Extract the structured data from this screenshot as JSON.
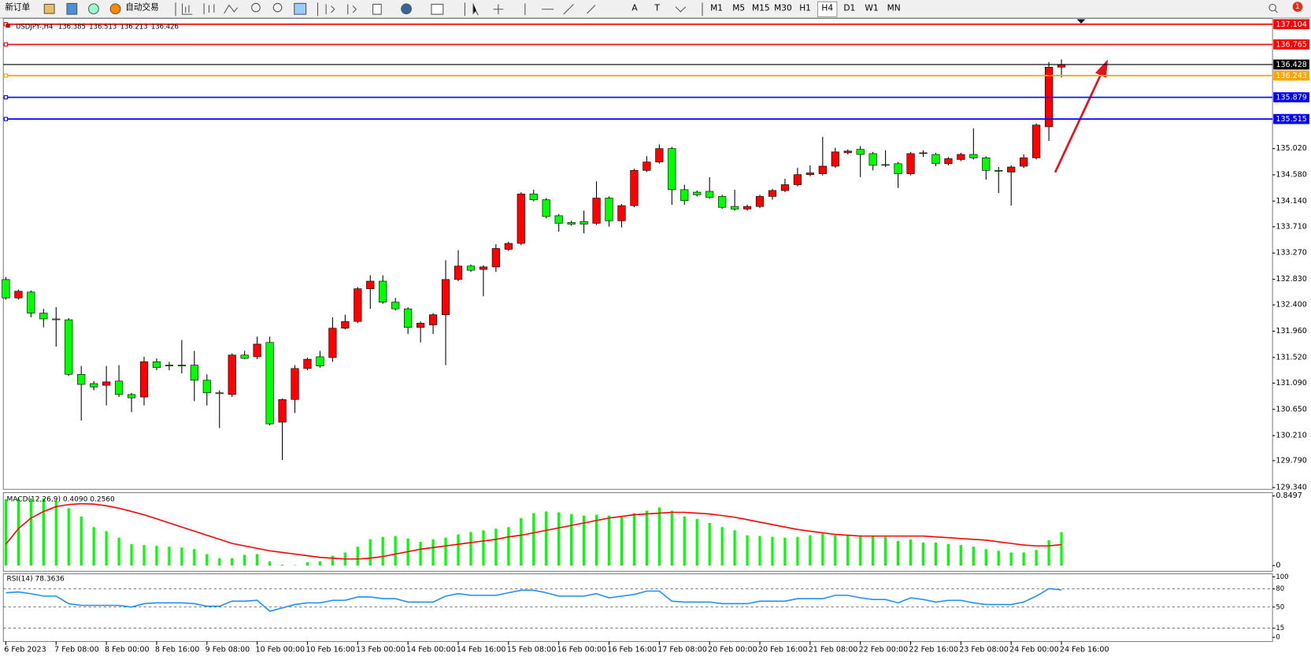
{
  "toolbar": {
    "buttons": [
      "新订单",
      "自动交易"
    ],
    "timeframes": [
      "M1",
      "M5",
      "M15",
      "M30",
      "H1",
      "H4",
      "D1",
      "W1",
      "MN"
    ],
    "tool_letters": [
      "A",
      "T"
    ],
    "notification_count": 1
  },
  "chart_data": [
    {
      "type": "candlestick",
      "title": "USDJPY-,H4",
      "header_values": [
        136.385,
        136.513,
        136.213,
        136.426
      ],
      "categories": [
        "6 Feb 2023",
        null,
        null,
        null,
        "7 Feb 08:00",
        null,
        null,
        null,
        "8 Feb 00:00",
        null,
        null,
        null,
        "8 Feb 16:00",
        null,
        null,
        null,
        "9 Feb 08:00",
        null,
        null,
        null,
        "10 Feb 00:00",
        null,
        null,
        null,
        "10 Feb 16:00",
        null,
        null,
        null,
        "13 Feb 00:00",
        null,
        null,
        null,
        "14 Feb 00:00",
        null,
        null,
        null,
        "14 Feb 16:00",
        null,
        null,
        null,
        "15 Feb 08:00",
        null,
        null,
        null,
        "16 Feb 00:00",
        null,
        null,
        null,
        "16 Feb 16:00",
        null,
        null,
        null,
        "17 Feb 08:00",
        null,
        null,
        null,
        "20 Feb 00:00",
        null,
        null,
        null,
        "20 Feb 16:00",
        null,
        null,
        null,
        "21 Feb 08:00",
        null,
        null,
        null,
        "22 Feb 00:00",
        null,
        null,
        null,
        "22 Feb 16:00",
        null,
        null,
        null,
        "23 Feb 08:00",
        null,
        null,
        null,
        "24 Feb 00:00",
        null,
        null,
        null,
        "24 Feb 16:00"
      ],
      "open": [
        132.826,
        132.517,
        132.615,
        132.263,
        132.165,
        132.151,
        131.237,
        131.082,
        131.054,
        131.124,
        130.899,
        130.857,
        131.447,
        131.391,
        131.391,
        131.391,
        131.138,
        130.927,
        130.899,
        131.56,
        131.532,
        131.771,
        130.435,
        130.815,
        131.335,
        131.532,
        131.518,
        132.01,
        132.123,
        132.671,
        132.798,
        132.446,
        132.334,
        132.024,
        132.066,
        132.235,
        132.826,
        133.051,
        132.995,
        133.037,
        133.332,
        133.431,
        134.26,
        134.162,
        133.895,
        133.782,
        133.796,
        133.768,
        134.19,
        133.81,
        134.064,
        134.654,
        134.795,
        135.02,
        134.331,
        134.289,
        134.303,
        134.218,
        134.05,
        134.007,
        134.05,
        134.218,
        134.317,
        134.415,
        134.584,
        134.598,
        134.725,
        134.95,
        135.006,
        134.936,
        134.753,
        134.767,
        134.598,
        134.936,
        134.922,
        134.767,
        134.837,
        134.922,
        134.865,
        134.654,
        134.626,
        134.725,
        134.865,
        135.386,
        136.385
      ],
      "high": [
        132.868,
        132.657,
        132.643,
        132.334,
        132.362,
        132.179,
        131.377,
        131.124,
        131.377,
        131.391,
        130.927,
        131.532,
        131.504,
        131.447,
        131.813,
        131.63,
        131.237,
        130.969,
        131.588,
        131.63,
        131.869,
        131.869,
        130.83,
        131.391,
        131.518,
        131.63,
        132.193,
        132.235,
        132.699,
        132.896,
        132.896,
        132.517,
        132.362,
        132.123,
        132.263,
        133.149,
        133.318,
        133.079,
        133.065,
        133.417,
        133.459,
        134.288,
        134.331,
        134.19,
        133.923,
        133.81,
        133.979,
        134.471,
        134.218,
        134.092,
        134.682,
        134.893,
        135.09,
        135.048,
        134.415,
        134.317,
        134.542,
        134.246,
        134.331,
        134.078,
        134.246,
        134.345,
        134.514,
        134.697,
        134.739,
        135.217,
        135.034,
        135.006,
        135.062,
        134.964,
        134.992,
        134.795,
        134.964,
        134.992,
        134.95,
        134.879,
        134.95,
        135.358,
        134.893,
        134.711,
        134.739,
        134.922,
        135.442,
        136.469,
        136.513
      ],
      "low": [
        132.489,
        132.489,
        132.193,
        132.024,
        131.701,
        131.209,
        130.463,
        130.969,
        130.716,
        130.857,
        130.604,
        130.716,
        131.307,
        131.307,
        131.251,
        130.787,
        130.716,
        130.336,
        130.857,
        131.49,
        131.49,
        130.38,
        129.802,
        130.59,
        131.307,
        131.349,
        131.447,
        131.99,
        132.094,
        132.334,
        132.418,
        132.306,
        131.912,
        131.771,
        131.912,
        131.391,
        132.798,
        132.953,
        132.545,
        132.953,
        133.304,
        133.403,
        134.134,
        133.853,
        133.628,
        133.726,
        133.599,
        133.74,
        133.712,
        133.698,
        134.036,
        134.626,
        134.767,
        134.078,
        134.078,
        134.218,
        134.176,
        134.007,
        133.979,
        133.979,
        134.021,
        134.162,
        134.289,
        134.387,
        134.556,
        134.57,
        134.697,
        134.922,
        134.542,
        134.654,
        134.711,
        134.359,
        134.57,
        134.88,
        134.725,
        134.739,
        134.809,
        134.837,
        134.5,
        134.275,
        134.064,
        134.697,
        134.837,
        135.147,
        136.213
      ],
      "close": [
        132.517,
        132.629,
        132.263,
        132.165,
        132.151,
        131.237,
        131.068,
        131.026,
        131.11,
        130.899,
        130.843,
        131.447,
        131.349,
        131.377,
        131.377,
        131.138,
        130.927,
        130.913,
        131.56,
        131.504,
        131.743,
        130.407,
        130.815,
        131.335,
        131.49,
        131.377,
        132.01,
        132.123,
        132.671,
        132.798,
        132.446,
        132.334,
        132.024,
        132.094,
        132.235,
        132.826,
        133.051,
        132.981,
        133.037,
        133.346,
        133.431,
        134.26,
        134.162,
        133.881,
        133.768,
        133.754,
        133.754,
        134.19,
        133.81,
        134.064,
        134.654,
        134.795,
        135.02,
        134.331,
        134.148,
        134.246,
        134.204,
        134.035,
        134.007,
        134.05,
        134.218,
        134.317,
        134.415,
        134.584,
        134.612,
        134.725,
        134.964,
        134.978,
        134.922,
        134.739,
        134.739,
        134.598,
        134.936,
        134.95,
        134.767,
        134.851,
        134.922,
        134.865,
        134.654,
        134.64,
        134.711,
        134.865,
        135.414,
        136.384,
        136.426
      ],
      "up_color": "#ff0000",
      "down_color": "#00ff00",
      "ylim": [
        129.31,
        137.2
      ],
      "yticks": [
        {
          "value": 135.02,
          "label": "135.020"
        },
        {
          "value": 134.58,
          "label": "134.580"
        },
        {
          "value": 134.14,
          "label": "134.140"
        },
        {
          "value": 133.71,
          "label": "133.710"
        },
        {
          "value": 133.27,
          "label": "133.270"
        },
        {
          "value": 132.83,
          "label": "132.830"
        },
        {
          "value": 132.4,
          "label": "132.400"
        },
        {
          "value": 131.96,
          "label": "131.960"
        },
        {
          "value": 131.52,
          "label": "131.520"
        },
        {
          "value": 131.09,
          "label": "131.090"
        },
        {
          "value": 130.65,
          "label": "130.650"
        },
        {
          "value": 130.21,
          "label": "130.210"
        },
        {
          "value": 129.79,
          "label": "129.790"
        },
        {
          "value": 129.34,
          "label": "129.340"
        }
      ],
      "hlines": [
        {
          "value": 137.104,
          "color": "#ff0000"
        },
        {
          "value": 136.765,
          "color": "#ff0000"
        },
        {
          "value": 136.428,
          "color": "#000000"
        },
        {
          "value": 136.243,
          "color": "#ffa500"
        },
        {
          "value": 135.879,
          "color": "#0000ff"
        },
        {
          "value": 135.515,
          "color": "#0000ff"
        }
      ]
    },
    {
      "type": "macd",
      "title": "MACD(12,26,9) 0.4090 0.2560",
      "histogram": {
        "color": "#00ff00",
        "values": [
          0.81,
          0.82,
          0.82,
          0.82,
          0.79,
          0.7,
          0.6,
          0.47,
          0.42,
          0.34,
          0.26,
          0.25,
          0.24,
          0.23,
          0.22,
          0.2,
          0.14,
          0.09,
          0.09,
          0.13,
          0.14,
          0.05,
          0.01,
          0.005,
          0.04,
          0.05,
          0.12,
          0.16,
          0.23,
          0.32,
          0.35,
          0.36,
          0.33,
          0.29,
          0.32,
          0.34,
          0.38,
          0.41,
          0.43,
          0.45,
          0.47,
          0.58,
          0.64,
          0.66,
          0.65,
          0.63,
          0.61,
          0.62,
          0.61,
          0.6,
          0.64,
          0.67,
          0.71,
          0.67,
          0.6,
          0.57,
          0.52,
          0.47,
          0.43,
          0.37,
          0.36,
          0.35,
          0.34,
          0.35,
          0.37,
          0.39,
          0.37,
          0.37,
          0.37,
          0.36,
          0.35,
          0.3,
          0.32,
          0.28,
          0.28,
          0.26,
          0.25,
          0.23,
          0.2,
          0.18,
          0.16,
          0.16,
          0.19,
          0.31,
          0.409
        ]
      },
      "signal": {
        "color": "#ff0000",
        "values": [
          0.26,
          0.45,
          0.58,
          0.66,
          0.72,
          0.745,
          0.755,
          0.75,
          0.73,
          0.7,
          0.66,
          0.62,
          0.57,
          0.52,
          0.47,
          0.42,
          0.37,
          0.32,
          0.27,
          0.24,
          0.21,
          0.18,
          0.16,
          0.14,
          0.12,
          0.1,
          0.09,
          0.08,
          0.08,
          0.09,
          0.11,
          0.14,
          0.17,
          0.2,
          0.22,
          0.24,
          0.26,
          0.28,
          0.3,
          0.32,
          0.35,
          0.37,
          0.4,
          0.43,
          0.46,
          0.49,
          0.52,
          0.55,
          0.58,
          0.6,
          0.62,
          0.63,
          0.64,
          0.65,
          0.65,
          0.64,
          0.63,
          0.61,
          0.59,
          0.56,
          0.53,
          0.5,
          0.47,
          0.44,
          0.42,
          0.4,
          0.38,
          0.37,
          0.36,
          0.36,
          0.36,
          0.36,
          0.36,
          0.36,
          0.35,
          0.34,
          0.33,
          0.32,
          0.31,
          0.29,
          0.27,
          0.25,
          0.24,
          0.24,
          0.256
        ]
      },
      "ylim": [
        -0.07,
        0.89
      ],
      "yticks": [
        0.8497,
        0
      ]
    },
    {
      "type": "rsi",
      "title": "RSI(14) 78.3636",
      "color": "#1e90ff",
      "values": [
        73.6,
        75.0,
        72,
        68.1,
        68.1,
        55.6,
        52.8,
        52.8,
        52.8,
        52.8,
        50.0,
        55.6,
        56.9,
        56.9,
        56.9,
        55.6,
        51.4,
        51.4,
        59.7,
        59.7,
        61.1,
        43.1,
        48.6,
        54.2,
        56.9,
        56.9,
        61.1,
        61.1,
        66.7,
        66.7,
        63.9,
        63.9,
        58.3,
        58.3,
        58.3,
        68.1,
        72.2,
        69.4,
        69.4,
        69.4,
        73.6,
        77.8,
        77.8,
        73.6,
        68.1,
        68.1,
        68.1,
        72.2,
        65.3,
        68.1,
        70.8,
        76.4,
        76.4,
        59.7,
        58.3,
        58.3,
        58.3,
        55.6,
        55.6,
        55.6,
        59.7,
        59.7,
        59.7,
        63.9,
        63.9,
        63.9,
        69.4,
        69.4,
        65.3,
        62.5,
        62.5,
        56.9,
        65.3,
        62.5,
        58.3,
        61.1,
        61.1,
        56.9,
        54.2,
        54.2,
        54.2,
        58.3,
        68.1,
        80.6,
        78.3636
      ],
      "ylim": [
        -7,
        105
      ],
      "yticks": [
        100,
        80,
        50,
        15,
        0
      ],
      "levels": [
        80,
        50,
        15
      ]
    }
  ]
}
